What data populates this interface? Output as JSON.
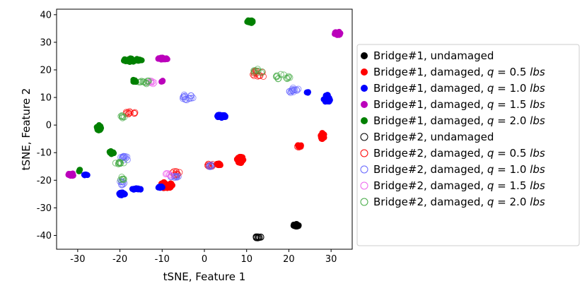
{
  "chart_data": {
    "type": "scatter",
    "xlabel": "tSNE, Feature 1",
    "ylabel": "tSNE, Feature 2",
    "xlim": [
      -35,
      35
    ],
    "ylim": [
      -45,
      42
    ],
    "xticks": [
      -30,
      -20,
      -10,
      0,
      10,
      20,
      30
    ],
    "yticks": [
      -40,
      -30,
      -20,
      -10,
      0,
      10,
      20,
      30,
      40
    ],
    "grid": false,
    "legend_position": "outside-right",
    "series": [
      {
        "name": "Bridge#1, undamaged",
        "bridge": "Bridge#1, ",
        "state": "undamaged",
        "q": "",
        "unit": "",
        "color": "#000000",
        "filled": true,
        "clusters": [
          [
            21.8,
            -36.3,
            0.8,
            0.5,
            30
          ]
        ]
      },
      {
        "name": "Bridge#1, damaged, q = 0.5 lbs",
        "bridge": "Bridge#1, ",
        "state": "damaged, ",
        "q": "0.5",
        "unit": "lbs",
        "color": "#ff0000",
        "filled": true,
        "clusters": [
          [
            -9,
            -21.8,
            1.6,
            1.2,
            45
          ],
          [
            8.5,
            -12.5,
            0.8,
            1.3,
            30
          ],
          [
            28,
            -4,
            0.5,
            1.2,
            25
          ],
          [
            22.5,
            -7.5,
            0.5,
            0.3,
            8
          ],
          [
            3.5,
            -14.2,
            0.6,
            0.4,
            10
          ]
        ]
      },
      {
        "name": "Bridge#1, damaged, q = 1.0 lbs",
        "bridge": "Bridge#1, ",
        "state": "damaged, ",
        "q": "1.0",
        "unit": "lbs",
        "color": "#0000ff",
        "filled": true,
        "clusters": [
          [
            4,
            3.2,
            1.2,
            0.6,
            30
          ],
          [
            -16,
            -23.2,
            1.2,
            0.3,
            15
          ],
          [
            -19.5,
            -25,
            0.7,
            0.6,
            15
          ],
          [
            -10.5,
            -22.5,
            0.6,
            0.4,
            8
          ],
          [
            29,
            9.5,
            0.8,
            1.5,
            25
          ],
          [
            24.5,
            11.8,
            0.3,
            0.2,
            4
          ],
          [
            -28,
            -18,
            0.5,
            0.3,
            5
          ]
        ]
      },
      {
        "name": "Bridge#1, damaged, q = 1.5 lbs",
        "bridge": "Bridge#1, ",
        "state": "damaged, ",
        "q": "1.5",
        "unit": "lbs",
        "color": "#bb00bb",
        "filled": true,
        "clusters": [
          [
            31.5,
            33.2,
            0.8,
            0.7,
            30
          ],
          [
            -9.8,
            24,
            1.2,
            0.5,
            25
          ],
          [
            -31.5,
            -18,
            0.8,
            0.5,
            15
          ],
          [
            -10,
            15.8,
            0.3,
            0.3,
            4
          ]
        ]
      },
      {
        "name": "Bridge#1, damaged, q = 2.0 lbs",
        "bridge": "Bridge#1, ",
        "state": "damaged, ",
        "q": "2.0",
        "unit": "lbs",
        "color": "#008000",
        "filled": true,
        "clusters": [
          [
            10.8,
            37.5,
            0.8,
            0.6,
            30
          ],
          [
            -17,
            23.5,
            2.2,
            0.8,
            35
          ],
          [
            -25,
            -1,
            0.6,
            1,
            20
          ],
          [
            -22,
            -10,
            0.6,
            0.6,
            10
          ],
          [
            -16.5,
            16,
            0.5,
            0.6,
            8
          ],
          [
            -29.5,
            -16.5,
            0.3,
            0.4,
            5
          ]
        ]
      },
      {
        "name": "Bridge#2, undamaged",
        "bridge": "Bridge#2, ",
        "state": "undamaged",
        "q": "",
        "unit": "",
        "color": "#000000",
        "filled": false,
        "clusters": [
          [
            12.8,
            -40.7,
            0.7,
            0.4,
            15
          ]
        ]
      },
      {
        "name": "Bridge#2, damaged, q = 0.5 lbs",
        "bridge": "Bridge#2, ",
        "state": "damaged, ",
        "q": "0.5",
        "unit": "lbs",
        "color": "#ff0000",
        "filled": false,
        "clusters": [
          [
            -17.5,
            4.5,
            1.2,
            0.8,
            10
          ],
          [
            13,
            18.5,
            1.6,
            1.5,
            12
          ],
          [
            1.5,
            -14.5,
            0.8,
            0.6,
            10
          ],
          [
            -7,
            -17.5,
            1.5,
            0.8,
            10
          ],
          [
            22.5,
            -7.8,
            0.5,
            0.3,
            6
          ]
        ]
      },
      {
        "name": "Bridge#2, damaged, q = 1.0 lbs",
        "bridge": "Bridge#2, ",
        "state": "damaged, ",
        "q": "1.0",
        "unit": "lbs",
        "color": "#6666ff",
        "filled": false,
        "clusters": [
          [
            -4,
            10,
            1.5,
            1.2,
            15
          ],
          [
            21,
            12.5,
            1.6,
            1,
            15
          ],
          [
            -19,
            -12,
            1.2,
            0.8,
            12
          ],
          [
            -19.5,
            -21,
            0.6,
            0.8,
            8
          ],
          [
            -7,
            -18.5,
            1.3,
            0.6,
            10
          ],
          [
            1.5,
            -14.8,
            0.6,
            0.5,
            6
          ]
        ]
      },
      {
        "name": "Bridge#2, damaged, q = 1.5 lbs",
        "bridge": "Bridge#2, ",
        "state": "damaged, ",
        "q": "1.5",
        "unit": "lbs",
        "color": "#ee66ee",
        "filled": false,
        "clusters": [
          [
            -12.5,
            15.5,
            1.2,
            0.6,
            8
          ],
          [
            -8.5,
            -18,
            1,
            0.6,
            6
          ]
        ]
      },
      {
        "name": "Bridge#2, damaged, q = 2.0 lbs",
        "bridge": "Bridge#2, ",
        "state": "damaged, ",
        "q": "2.0",
        "unit": "lbs",
        "color": "#44aa44",
        "filled": false,
        "clusters": [
          [
            -14,
            15.5,
            2,
            0.6,
            12
          ],
          [
            13,
            19.5,
            1.5,
            0.8,
            8
          ],
          [
            18.5,
            17.5,
            2,
            1,
            12
          ],
          [
            -20,
            -13.5,
            1.2,
            1,
            10
          ],
          [
            -19.5,
            3,
            0.8,
            0.6,
            6
          ],
          [
            -19.5,
            -19.5,
            0.6,
            0.8,
            6
          ]
        ]
      }
    ]
  }
}
